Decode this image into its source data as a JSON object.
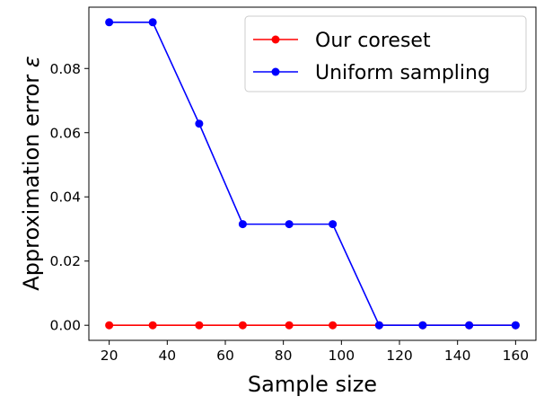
{
  "chart_data": {
    "type": "line",
    "xlabel": "Sample size",
    "ylabel_prefix": "Approximation error ",
    "ylabel_symbol": "ε",
    "x": [
      20,
      35,
      51,
      66,
      82,
      97,
      113,
      128,
      144,
      160
    ],
    "series": [
      {
        "name": "Our coreset",
        "color": "#ff0000",
        "values": [
          0,
          0,
          0,
          0,
          0,
          0,
          0,
          0,
          0,
          0
        ]
      },
      {
        "name": "Uniform sampling",
        "color": "#0000ff",
        "values": [
          0.0944,
          0.0944,
          0.0628,
          0.0315,
          0.0315,
          0.0315,
          0,
          0,
          0,
          0
        ]
      }
    ],
    "xlim": [
      13,
      167
    ],
    "ylim": [
      -0.0047,
      0.0991
    ],
    "xticks": [
      20,
      40,
      60,
      80,
      100,
      120,
      140,
      160
    ],
    "xtick_labels": [
      "20",
      "40",
      "60",
      "80",
      "100",
      "120",
      "140",
      "160"
    ],
    "yticks": [
      0.0,
      0.02,
      0.04,
      0.06,
      0.08
    ],
    "ytick_labels": [
      "0.00",
      "0.02",
      "0.04",
      "0.06",
      "0.08"
    ],
    "legend_position": "top-right",
    "grid": false
  }
}
